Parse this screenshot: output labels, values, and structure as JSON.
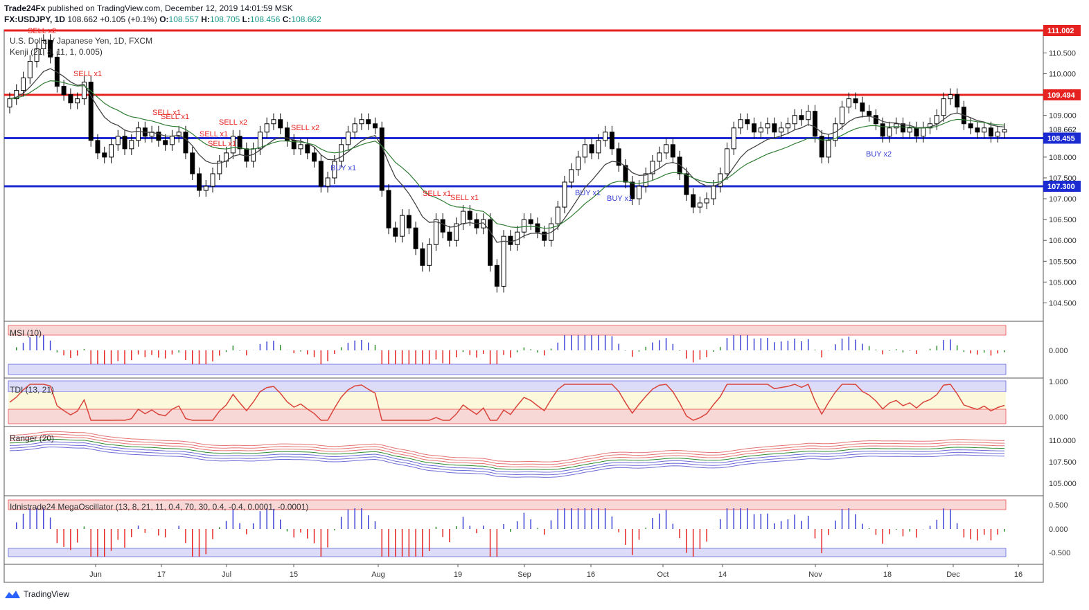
{
  "header": {
    "publisher": "Trade24Fx",
    "published_text": "published on TradingView.com, December 12, 2019 14:01:59 MSK",
    "symbol": "FX:USDJPY, 1D",
    "last": "108.662",
    "change": "+0.105 (+0.1%)",
    "o_label": "O:",
    "o_value": "108.557",
    "h_label": "H:",
    "h_value": "108.705",
    "l_label": "L:",
    "l_value": "108.456",
    "c_label": "C:",
    "c_value": "108.662"
  },
  "main_pane": {
    "title": "U.S. Dollar / Japanese Yen, 1D, FXCM",
    "indicator": "Kenji (21, 8, 11, 1, 0.005)",
    "price_ticks": [
      "110.500",
      "110.000",
      "109.000",
      "108.000",
      "107.500",
      "107.000",
      "106.500",
      "106.000",
      "105.500",
      "105.000",
      "104.500"
    ],
    "levels": [
      {
        "label": "111.002",
        "color": "#e5221f"
      },
      {
        "label": "109.494",
        "color": "#e5221f"
      },
      {
        "label": "108.662",
        "color": "#131722"
      },
      {
        "label": "108.455",
        "color": "#1b2bd1"
      },
      {
        "label": "107.300",
        "color": "#1b2bd1"
      }
    ],
    "signals": [
      "SELL x2",
      "SELL x1",
      "SELL x1",
      "SELL x1",
      "SELL x2",
      "SELL x1",
      "SELL x1",
      "SELL x2",
      "SELL x1",
      "SELL x1",
      "BUY x1",
      "BUY x1",
      "BUY x1",
      "BUY x2"
    ]
  },
  "msi_pane": {
    "title": "MSI (10)",
    "tick": "0.000"
  },
  "tdi_pane": {
    "title": "TDI (13, 21)",
    "ticks": [
      "1.000",
      "0.000"
    ]
  },
  "ranger_pane": {
    "title": "Ranger (20)",
    "ticks": [
      "110.000",
      "107.500",
      "105.000"
    ]
  },
  "mega_pane": {
    "title": "Idnistrade24 MegaOscillator (13, 8, 21, 11, 0.4, 70, 30, 0.4, -0.4, 0.0001, -0.0001)",
    "ticks": [
      "0.500",
      "0.000",
      "-0.500"
    ]
  },
  "time_axis": [
    "Jun",
    "17",
    "Jul",
    "15",
    "Aug",
    "19",
    "Sep",
    "16",
    "Oct",
    "14",
    "Nov",
    "18",
    "Dec",
    "16"
  ],
  "footer": {
    "brand": "TradingView"
  },
  "colors": {
    "bull": "#ffffff",
    "bear": "#000000",
    "sell": "#e5221f",
    "buy": "#3a3fd6",
    "green": "#2e8b2e"
  }
}
